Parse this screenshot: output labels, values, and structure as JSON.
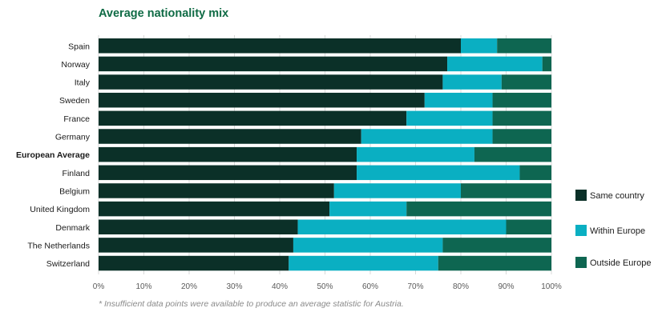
{
  "chart_data": {
    "type": "bar",
    "orientation": "horizontal",
    "stacked": true,
    "title": "Average nationality mix",
    "categories": [
      "Spain",
      "Norway",
      "Italy",
      "Sweden",
      "France",
      "Germany",
      "European Average",
      "Finland",
      "Belgium",
      "United Kingdom",
      "Denmark",
      "The Netherlands",
      "Switzerland"
    ],
    "highlighted_category": "European Average",
    "series": [
      {
        "name": "Same country",
        "color": "#0b3028",
        "values": [
          80,
          77,
          76,
          72,
          68,
          58,
          57,
          57,
          52,
          51,
          44,
          43,
          42
        ]
      },
      {
        "name": "Within Europe",
        "color": "#0aafc2",
        "values": [
          8,
          21,
          13,
          15,
          19,
          29,
          26,
          36,
          28,
          17,
          46,
          33,
          33
        ]
      },
      {
        "name": "Outside Europe",
        "color": "#0e6651",
        "values": [
          12,
          2,
          11,
          13,
          13,
          13,
          17,
          7,
          20,
          32,
          10,
          24,
          25
        ]
      }
    ],
    "xlim": [
      0,
      100
    ],
    "x_ticks": [
      "0%",
      "10%",
      "20%",
      "30%",
      "40%",
      "50%",
      "60%",
      "70%",
      "80%",
      "90%",
      "100%"
    ],
    "grid": true,
    "legend_position": "right"
  },
  "footnote": "* Insufficient data points were available to produce an average statistic for Austria."
}
